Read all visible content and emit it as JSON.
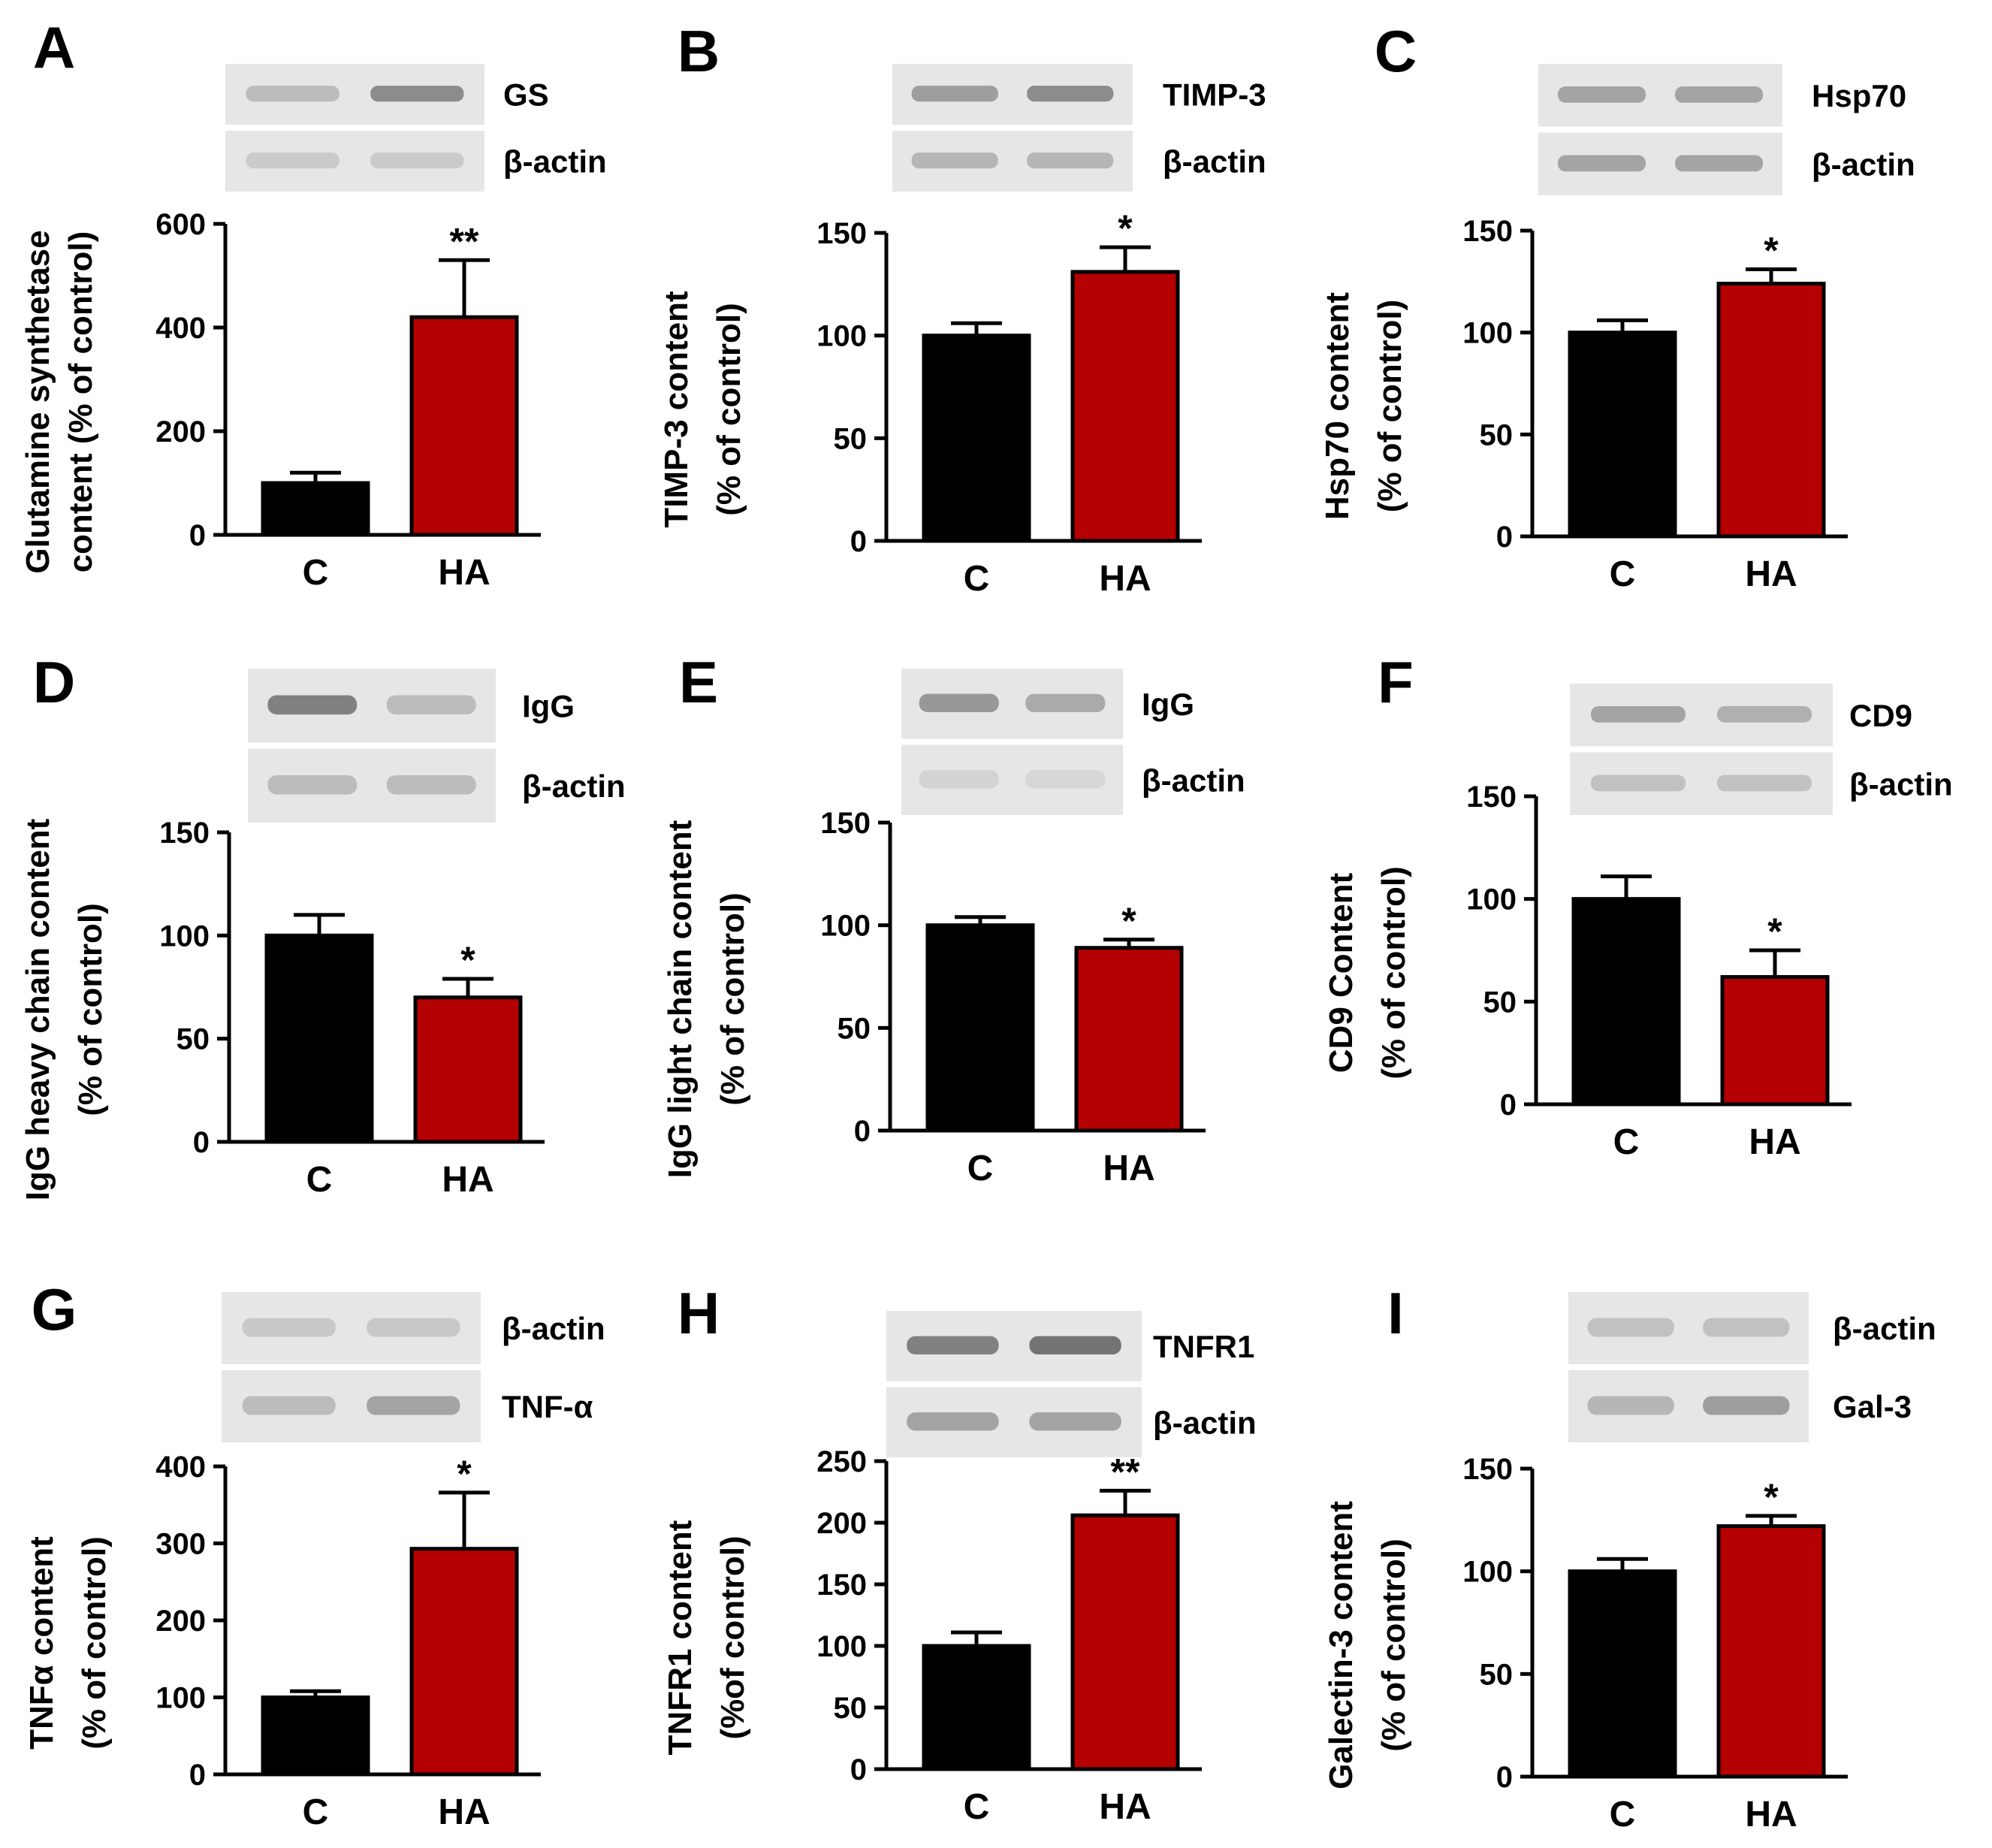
{
  "colors": {
    "control": "#000000",
    "ha": "#b40000",
    "axis": "#000000",
    "blot_bg": "#e6e6e6",
    "band": "#6e6e6e"
  },
  "chart_data": [
    {
      "type": "bar",
      "panel": "A",
      "categories": [
        "C",
        "HA"
      ],
      "values": [
        100,
        420
      ],
      "errors": [
        20,
        110
      ],
      "significance": [
        "",
        "**"
      ],
      "ylim": [
        0,
        600
      ],
      "yticks": [
        0,
        200,
        400,
        600
      ],
      "ylabel": [
        "Glutamine synthetase",
        "content (% of control)"
      ],
      "blots": [
        {
          "label": "GS",
          "intensity": [
            0.35,
            0.75
          ]
        },
        {
          "label": "β-actin",
          "intensity": [
            0.22,
            0.22
          ]
        }
      ]
    },
    {
      "type": "bar",
      "panel": "B",
      "categories": [
        "C",
        "HA"
      ],
      "values": [
        100,
        131
      ],
      "errors": [
        6,
        12
      ],
      "significance": [
        "",
        "*"
      ],
      "ylim": [
        0,
        150
      ],
      "yticks": [
        0,
        50,
        100,
        150
      ],
      "ylabel": [
        "TIMP-3 content",
        "(% of control)"
      ],
      "blots": [
        {
          "label": "TIMP-3",
          "intensity": [
            0.6,
            0.75
          ]
        },
        {
          "label": "β-actin",
          "intensity": [
            0.4,
            0.4
          ]
        }
      ]
    },
    {
      "type": "bar",
      "panel": "C",
      "categories": [
        "C",
        "HA"
      ],
      "values": [
        100,
        124
      ],
      "errors": [
        6,
        7
      ],
      "significance": [
        "",
        "*"
      ],
      "ylim": [
        0,
        150
      ],
      "yticks": [
        0,
        50,
        100,
        150
      ],
      "ylabel": [
        "Hsp70 content",
        "(% of control)"
      ],
      "blots": [
        {
          "label": "Hsp70",
          "intensity": [
            0.55,
            0.55
          ]
        },
        {
          "label": "β-actin",
          "intensity": [
            0.55,
            0.55
          ]
        }
      ]
    },
    {
      "type": "bar",
      "panel": "D",
      "categories": [
        "C",
        "HA"
      ],
      "values": [
        100,
        70
      ],
      "errors": [
        10,
        9
      ],
      "significance": [
        "",
        "*"
      ],
      "ylim": [
        0,
        150
      ],
      "yticks": [
        0,
        50,
        100,
        150
      ],
      "ylabel": [
        "IgG heavy chain content",
        "(% of control)"
      ],
      "blots": [
        {
          "label": "IgG",
          "intensity": [
            0.85,
            0.35
          ]
        },
        {
          "label": "β-actin",
          "intensity": [
            0.35,
            0.35
          ]
        }
      ]
    },
    {
      "type": "bar",
      "panel": "E",
      "categories": [
        "C",
        "HA"
      ],
      "values": [
        100,
        89
      ],
      "errors": [
        4,
        4
      ],
      "significance": [
        "",
        "*"
      ],
      "ylim": [
        0,
        150
      ],
      "yticks": [
        0,
        50,
        100,
        150
      ],
      "ylabel": [
        "IgG light chain content",
        "(% of control)"
      ],
      "blots": [
        {
          "label": "IgG",
          "intensity": [
            0.65,
            0.5
          ]
        },
        {
          "label": "β-actin",
          "intensity": [
            0.15,
            0.12
          ]
        }
      ]
    },
    {
      "type": "bar",
      "panel": "F",
      "categories": [
        "C",
        "HA"
      ],
      "values": [
        100,
        62
      ],
      "errors": [
        11,
        13
      ],
      "significance": [
        "",
        "*"
      ],
      "ylim": [
        0,
        150
      ],
      "yticks": [
        0,
        50,
        100,
        150
      ],
      "ylabel": [
        "CD9 Content",
        "(% of control)"
      ],
      "blots": [
        {
          "label": "CD9",
          "intensity": [
            0.55,
            0.45
          ]
        },
        {
          "label": "β-actin",
          "intensity": [
            0.3,
            0.3
          ]
        }
      ]
    },
    {
      "type": "bar",
      "panel": "G",
      "categories": [
        "C",
        "HA"
      ],
      "values": [
        100,
        293
      ],
      "errors": [
        8,
        73
      ],
      "significance": [
        "",
        "*"
      ],
      "ylim": [
        0,
        400
      ],
      "yticks": [
        0,
        100,
        200,
        300,
        400
      ],
      "ylabel": [
        "TNFα content",
        "(% of control)"
      ],
      "blots": [
        {
          "label": "β-actin",
          "intensity": [
            0.25,
            0.25
          ]
        },
        {
          "label": "TNF-α",
          "intensity": [
            0.35,
            0.55
          ]
        }
      ]
    },
    {
      "type": "bar",
      "panel": "H",
      "categories": [
        "C",
        "HA"
      ],
      "values": [
        100,
        206
      ],
      "errors": [
        11,
        20
      ],
      "significance": [
        "",
        "**"
      ],
      "ylim": [
        0,
        250
      ],
      "yticks": [
        0,
        50,
        100,
        150,
        200,
        250
      ],
      "ylabel": [
        "TNFR1 content",
        "(%of control)"
      ],
      "blots": [
        {
          "label": "TNFR1",
          "intensity": [
            0.85,
            0.95
          ]
        },
        {
          "label": "β-actin",
          "intensity": [
            0.55,
            0.55
          ]
        }
      ]
    },
    {
      "type": "bar",
      "panel": "I",
      "categories": [
        "C",
        "HA"
      ],
      "values": [
        100,
        122
      ],
      "errors": [
        6,
        5
      ],
      "significance": [
        "",
        "*"
      ],
      "ylim": [
        0,
        150
      ],
      "yticks": [
        0,
        50,
        100,
        150
      ],
      "ylabel": [
        "Galectin-3 content",
        "(% of control)"
      ],
      "blots": [
        {
          "label": "β-actin",
          "intensity": [
            0.3,
            0.3
          ]
        },
        {
          "label": "Gal-3",
          "intensity": [
            0.4,
            0.6
          ]
        }
      ]
    }
  ]
}
